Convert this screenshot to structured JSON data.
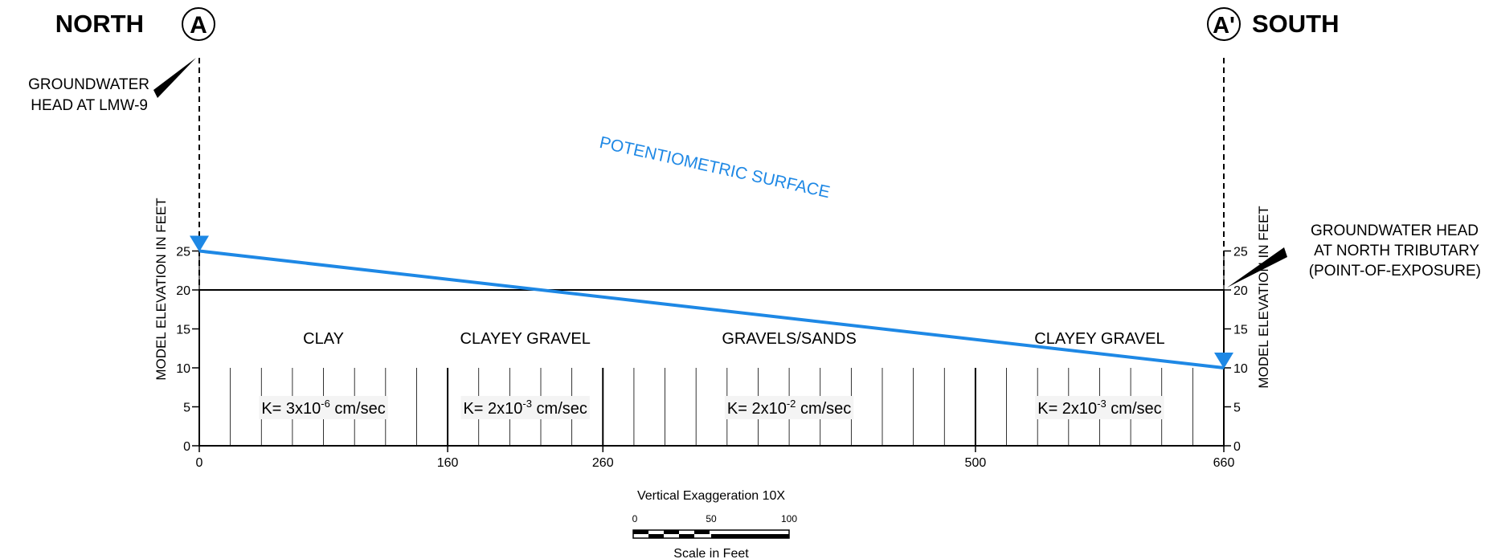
{
  "north_label": "NORTH",
  "south_label": "SOUTH",
  "marker_a": "A",
  "marker_a_prime": "A'",
  "left_callout": {
    "line1": "GROUNDWATER",
    "line2": "HEAD AT LMW-9"
  },
  "right_callout": {
    "line1": "GROUNDWATER HEAD",
    "line2": "AT NORTH TRIBUTARY",
    "line3": "(POINT-OF-EXPOSURE)"
  },
  "surface_label": "POTENTIOMETRIC SURFACE",
  "axis_label_left": "MODEL ELEVATION IN FEET",
  "axis_label_right": "MODEL ELEVATION IN FEET",
  "y_ticks": [
    "0",
    "5",
    "10",
    "15",
    "20",
    "25"
  ],
  "x_ticks": [
    "0",
    "160",
    "260",
    "500",
    "660"
  ],
  "head": {
    "north_ft": 25,
    "south_ft": 10
  },
  "section_length_ft": 660,
  "layers": [
    {
      "name": "CLAY",
      "k_base": "K= 3x10",
      "k_exp": "-6",
      "k_unit": " cm/sec",
      "x_start": 0,
      "x_end": 160
    },
    {
      "name": "CLAYEY GRAVEL",
      "k_base": "K= 2x10",
      "k_exp": "-3",
      "k_unit": " cm/sec",
      "x_start": 160,
      "x_end": 260
    },
    {
      "name": "GRAVELS/SANDS",
      "k_base": "K= 2x10",
      "k_exp": "-2",
      "k_unit": " cm/sec",
      "x_start": 260,
      "x_end": 500
    },
    {
      "name": "CLAYEY GRAVEL",
      "k_base": "K= 2x10",
      "k_exp": "-3",
      "k_unit": " cm/sec",
      "x_start": 500,
      "x_end": 660
    }
  ],
  "vertical_exaggeration": "Vertical Exaggeration 10X",
  "scale_bar": {
    "ticks": [
      "0",
      "50",
      "100"
    ],
    "label": "Scale in Feet"
  },
  "colors": {
    "surface": "#1e88e5",
    "lines": "#000000"
  }
}
